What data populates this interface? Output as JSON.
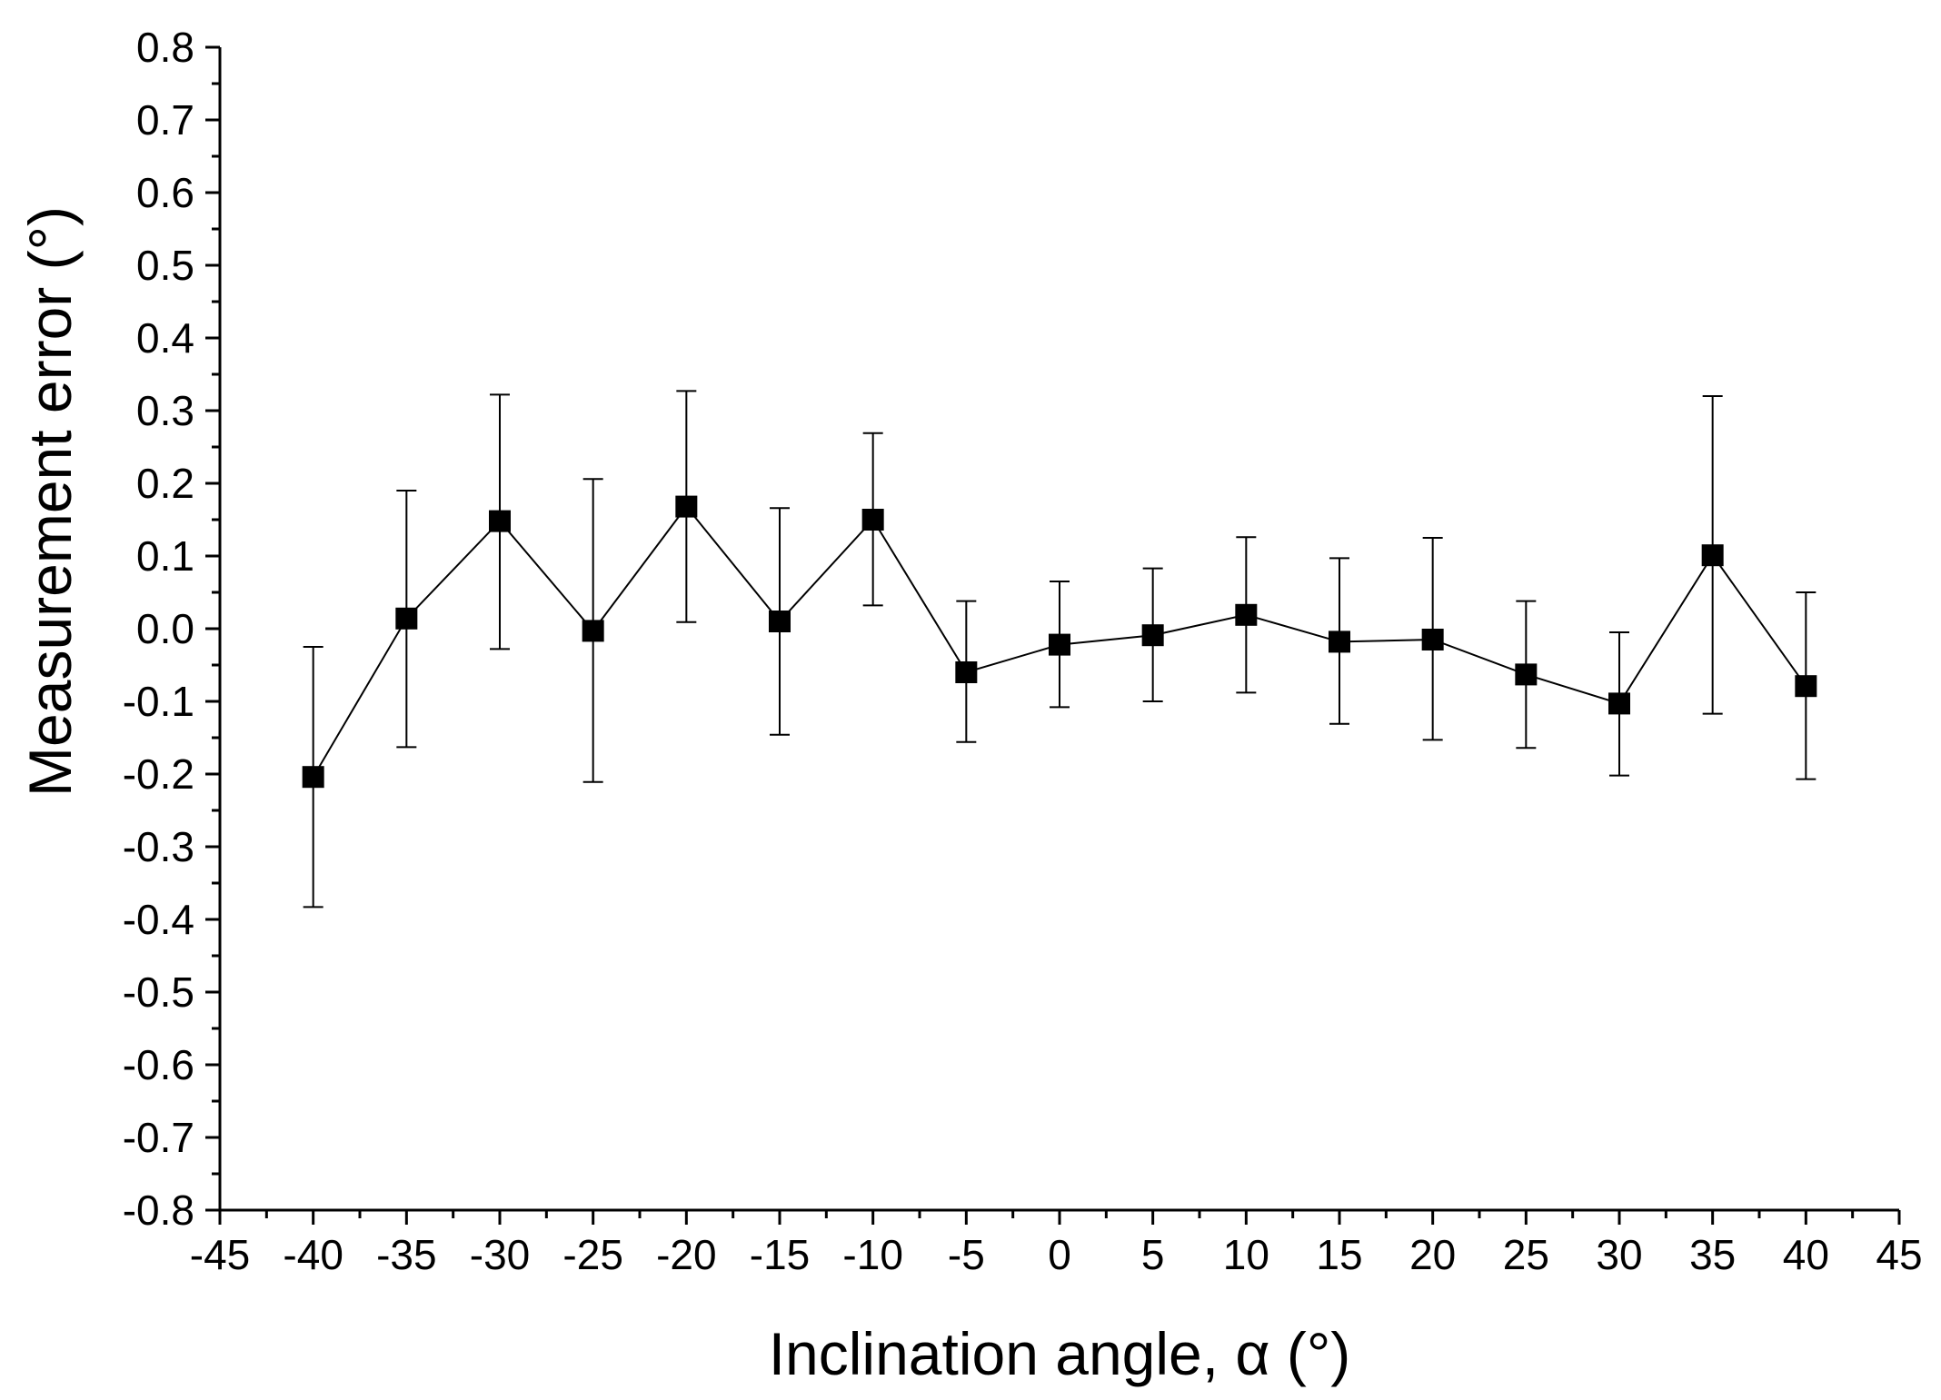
{
  "chart_data": {
    "type": "scatter",
    "title": "",
    "xlabel": "Inclination angle, α (°)",
    "ylabel": "Measurement error (°)",
    "xlim": [
      -45,
      45
    ],
    "ylim": [
      -0.8,
      0.8
    ],
    "xticks": [
      "-45",
      "-40",
      "-35",
      "-30",
      "-25",
      "-20",
      "-15",
      "-10",
      "-5",
      "0",
      "5",
      "10",
      "15",
      "20",
      "25",
      "30",
      "35",
      "40",
      "45"
    ],
    "yticks": [
      "0.8",
      "0.7",
      "0.6",
      "0.5",
      "0.4",
      "0.3",
      "0.2",
      "0.1",
      "0.0",
      "-0.1",
      "-0.2",
      "-0.3",
      "-0.4",
      "-0.5",
      "-0.6",
      "-0.7",
      "-0.8"
    ],
    "grid": false,
    "legend": "none",
    "series": [
      {
        "name": "Measurement error",
        "marker": "square",
        "line": true,
        "color": "#000000",
        "x": [
          -40,
          -35,
          -30,
          -25,
          -20,
          -15,
          -10,
          -5,
          0,
          5,
          10,
          15,
          20,
          25,
          30,
          35,
          40
        ],
        "y": [
          -0.204,
          0.014,
          0.148,
          -0.003,
          0.168,
          0.01,
          0.15,
          -0.06,
          -0.022,
          -0.009,
          0.019,
          -0.018,
          -0.015,
          -0.063,
          -0.103,
          0.101,
          -0.079
        ],
        "err_upper": [
          -0.025,
          0.19,
          0.322,
          0.206,
          0.327,
          0.166,
          0.269,
          0.038,
          0.065,
          0.083,
          0.126,
          0.097,
          0.125,
          0.038,
          -0.005,
          0.32,
          0.05
        ],
        "err_lower": [
          -0.383,
          -0.163,
          -0.028,
          -0.211,
          0.009,
          -0.146,
          0.032,
          -0.156,
          -0.108,
          -0.1,
          -0.088,
          -0.131,
          -0.153,
          -0.164,
          -0.202,
          -0.117,
          -0.207
        ]
      }
    ]
  }
}
